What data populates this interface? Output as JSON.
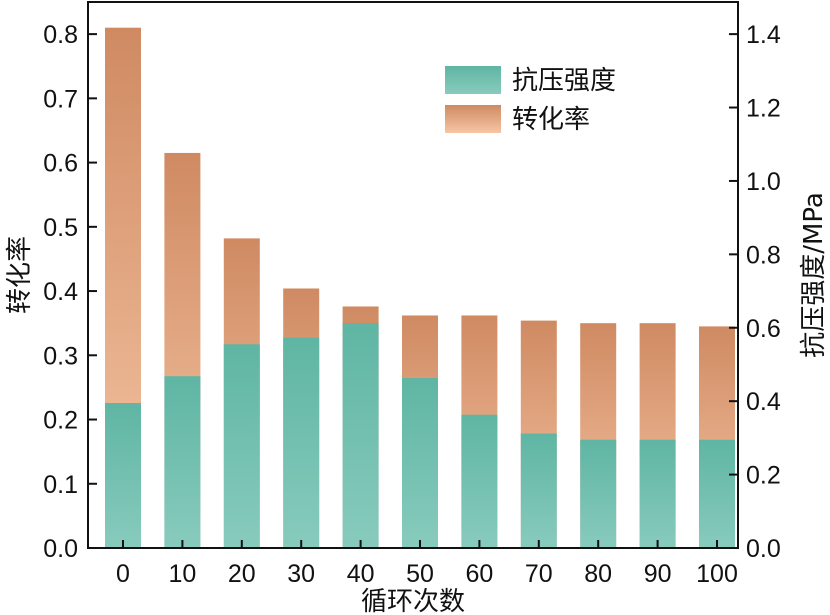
{
  "chart_data": {
    "type": "bar",
    "categories": [
      "0",
      "10",
      "20",
      "30",
      "40",
      "50",
      "60",
      "70",
      "80",
      "90",
      "100"
    ],
    "xlabel": "循环次数",
    "ylabel_left": "转化率",
    "ylabel_right": "抗压强度/MPa",
    "ylim_left": [
      0,
      0.85
    ],
    "ylim_right": [
      0,
      1.4875
    ],
    "yticks_left": [
      "0.0",
      "0.1",
      "0.2",
      "0.3",
      "0.4",
      "0.5",
      "0.6",
      "0.7",
      "0.8"
    ],
    "yticks_right": [
      "0.0",
      "0.2",
      "0.4",
      "0.6",
      "0.8",
      "1.0",
      "1.2",
      "1.4"
    ],
    "legend_position": "top-right",
    "series": [
      {
        "name": "抗压强度",
        "axis": "right",
        "color_top": "#5fb5a3",
        "color_bottom": "#88cbbd",
        "values": [
          0.395,
          0.468,
          0.555,
          0.573,
          0.613,
          0.463,
          0.363,
          0.312,
          0.295,
          0.295,
          0.295
        ]
      },
      {
        "name": "转化率",
        "axis": "left",
        "color_top": "#cf8a62",
        "color_bottom": "#f6c6a5",
        "values": [
          0.81,
          0.615,
          0.482,
          0.404,
          0.376,
          0.362,
          0.362,
          0.354,
          0.35,
          0.35,
          0.345
        ]
      }
    ]
  }
}
